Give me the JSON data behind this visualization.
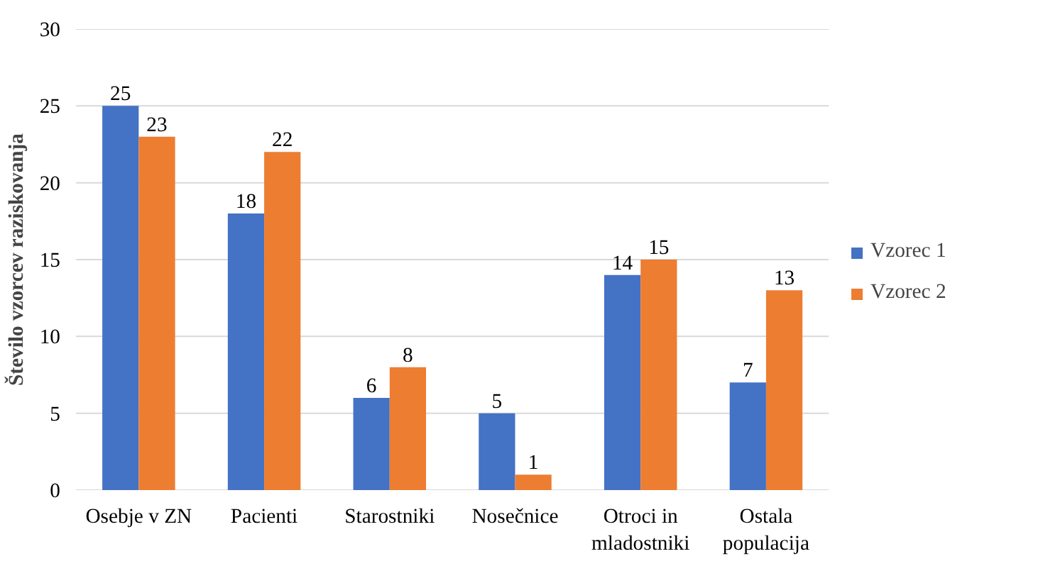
{
  "chart_data": {
    "type": "bar",
    "ylabel": "Število vzorcev raziskovanja",
    "categories": [
      "Osebje v ZN",
      "Pacienti",
      "Starostniki",
      "Nosečnice",
      "Otroci in\nmladostniki",
      "Ostala\npopulacija"
    ],
    "series": [
      {
        "name": "Vzorec 1",
        "color": "#4472c4",
        "values": [
          25,
          18,
          6,
          5,
          14,
          7
        ]
      },
      {
        "name": "Vzorec 2",
        "color": "#ed7d31",
        "values": [
          23,
          22,
          8,
          1,
          15,
          13
        ]
      }
    ],
    "ylim": [
      0,
      30
    ],
    "yticks": [
      0,
      5,
      10,
      15,
      20,
      25,
      30
    ],
    "grid": "y",
    "legend": "right",
    "data_labels": true
  }
}
